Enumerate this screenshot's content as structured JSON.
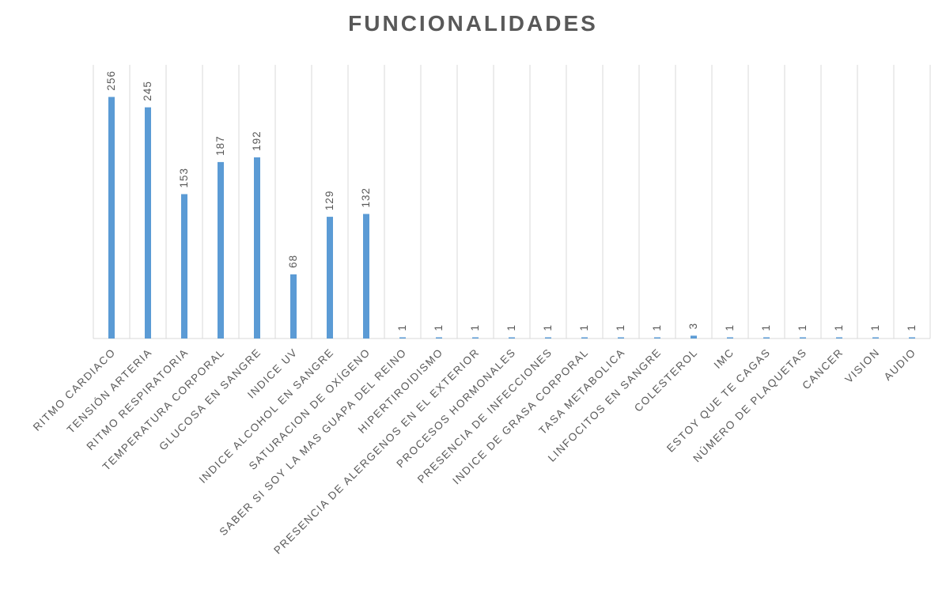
{
  "chart_data": {
    "type": "bar",
    "title": "FUNCIONALIDADES",
    "categories": [
      "RITMO CARDIACO",
      "TENSIÓN ARTERIA",
      "RITMO RESPIRATORIA",
      "TEMPERATURA CORPORAL",
      "GLUCOSA EN SANGRE",
      "INDICE UV",
      "INDICE ALCOHOL EN SANGRE",
      "SATURACION DE OXÍGENO",
      "SABER SI SOY LA MAS GUAPA DEL REINO",
      "HIPERTIROIDISMO",
      "PRESENCIA DE ALERGENOS EN EL EXTERIOR",
      "PROCESOS HORMONALES",
      "PRESENCIA DE INFECCIONES",
      "INDICE DE GRASA CORPORAL",
      "TASA METABOLICA",
      "LINFOCITOS EN SANGRE",
      "COLESTEROL",
      "IMC",
      "ESTOY QUE TE CAGAS",
      "NÚMERO DE PLAQUETAS",
      "CANCER",
      "VISION",
      "AUDIO"
    ],
    "values": [
      256,
      245,
      153,
      187,
      192,
      68,
      129,
      132,
      1,
      1,
      1,
      1,
      1,
      1,
      1,
      1,
      3,
      1,
      1,
      1,
      1,
      1,
      1
    ],
    "data_labels": [
      "256",
      "245",
      "153",
      "187",
      "192",
      "68",
      "129",
      "132",
      "1",
      "1",
      "1",
      "1",
      "1",
      "1",
      "1",
      "1",
      "3",
      "1",
      "1",
      "1",
      "1",
      "1",
      "1"
    ],
    "xlabel": "",
    "ylabel": "",
    "ylim": [
      0,
      290
    ],
    "grid": "vertical category separators",
    "legend": "none",
    "bar_color": "#5b9bd5",
    "text_color": "#595959",
    "grid_color": "#d9d9d9"
  }
}
